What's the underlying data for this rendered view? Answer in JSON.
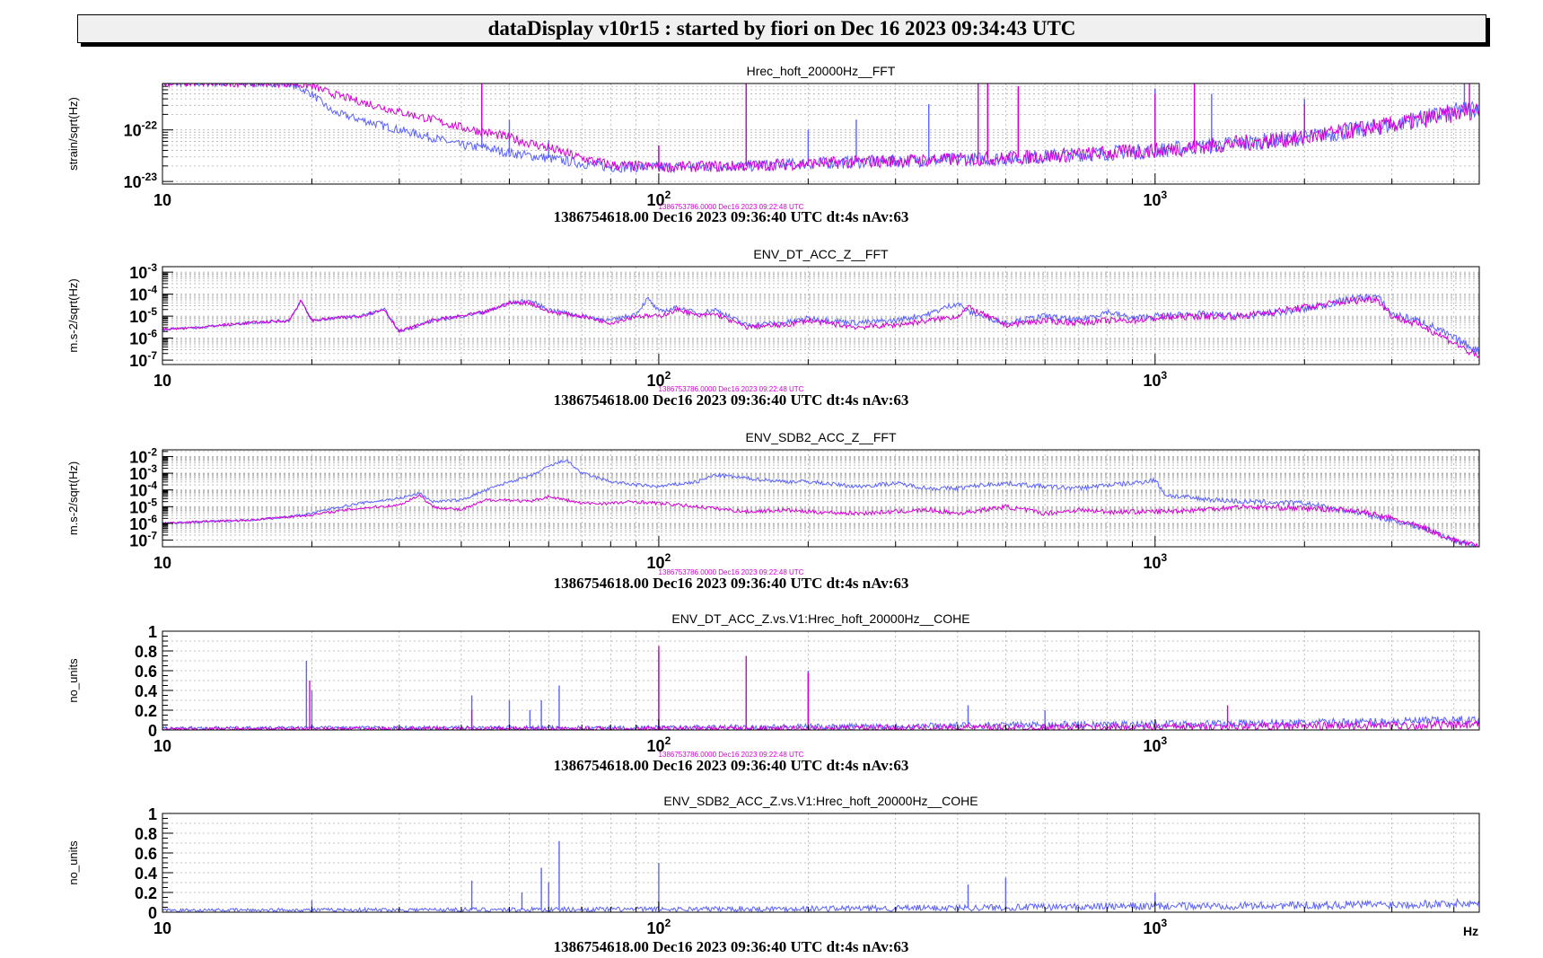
{
  "header": {
    "title": "dataDisplay v10r15 : started by fiori on Dec 16 2023 09:34:43 UTC"
  },
  "colors": {
    "current": "#5b62ff",
    "reference": "#d400d4",
    "grid": "#b0b0b0"
  },
  "x_axis_unit": "Hz",
  "chart_data": [
    {
      "type": "line",
      "title": "Hrec_hoft_20000Hz__FFT",
      "ylabel": "strain/sqrt(Hz)",
      "yscale": "log",
      "xscale": "log",
      "xlim": [
        10,
        4500
      ],
      "ylim_exp": [
        -23.05,
        -21.1
      ],
      "yticks": [
        {
          "exp": -22,
          "base": "10",
          "sup": "-22"
        },
        {
          "exp": -23,
          "base": "10",
          "sup": "-23"
        }
      ],
      "xticks": [
        {
          "v": 10,
          "base": "10",
          "sup": ""
        },
        {
          "v": 100,
          "base": "10",
          "sup": "2"
        },
        {
          "v": 1000,
          "base": "10",
          "sup": "3"
        }
      ],
      "stamp": "1386753786.0000 Dec16 2023 09:22:48 UTC",
      "footer": "1386754618.00 Dec16 2023 09:36:40 UTC dt:4s nAv:63",
      "series": [
        {
          "role": "current",
          "x": [
            10,
            15,
            18,
            20,
            22,
            25,
            30,
            35,
            40,
            45,
            50,
            55,
            60,
            70,
            80,
            100,
            150,
            200,
            300,
            500,
            1000,
            2000,
            3000,
            4500
          ],
          "y_exp": [
            -21.1,
            -21.1,
            -21.1,
            -21.3,
            -21.65,
            -21.8,
            -22.0,
            -22.15,
            -22.3,
            -22.35,
            -22.45,
            -22.5,
            -22.55,
            -22.65,
            -22.72,
            -22.72,
            -22.7,
            -22.65,
            -22.6,
            -22.55,
            -22.4,
            -22.15,
            -21.9,
            -21.55
          ],
          "peaks": [
            {
              "x": 44,
              "y_exp": -21.15
            },
            {
              "x": 50,
              "y_exp": -21.8
            },
            {
              "x": 60,
              "y_exp": -22.2
            },
            {
              "x": 100,
              "y_exp": -22.3
            },
            {
              "x": 150,
              "y_exp": -21.1
            },
            {
              "x": 200,
              "y_exp": -22.0
            },
            {
              "x": 250,
              "y_exp": -21.8
            },
            {
              "x": 350,
              "y_exp": -21.5
            },
            {
              "x": 440,
              "y_exp": -21.1
            },
            {
              "x": 460,
              "y_exp": -21.1
            },
            {
              "x": 530,
              "y_exp": -21.2
            },
            {
              "x": 1000,
              "y_exp": -21.2
            },
            {
              "x": 1300,
              "y_exp": -21.3
            },
            {
              "x": 2000,
              "y_exp": -21.4
            },
            {
              "x": 4200,
              "y_exp": -21.1
            }
          ]
        },
        {
          "role": "reference",
          "x": [
            10,
            18,
            20,
            22,
            25,
            30,
            35,
            40,
            45,
            50,
            60,
            70,
            80,
            100,
            150,
            200,
            300,
            500,
            1000,
            2000,
            3000,
            4500
          ],
          "y_exp": [
            -21.1,
            -21.1,
            -21.15,
            -21.3,
            -21.45,
            -21.65,
            -21.8,
            -21.95,
            -22.05,
            -22.15,
            -22.35,
            -22.55,
            -22.68,
            -22.72,
            -22.7,
            -22.65,
            -22.6,
            -22.55,
            -22.4,
            -22.15,
            -21.9,
            -21.6
          ],
          "peaks": [
            {
              "x": 44,
              "y_exp": -21.1
            },
            {
              "x": 100,
              "y_exp": -22.3
            },
            {
              "x": 150,
              "y_exp": -21.1
            },
            {
              "x": 440,
              "y_exp": -21.1
            },
            {
              "x": 460,
              "y_exp": -21.1
            },
            {
              "x": 530,
              "y_exp": -21.15
            },
            {
              "x": 1000,
              "y_exp": -21.3
            },
            {
              "x": 1200,
              "y_exp": -21.1
            },
            {
              "x": 2000,
              "y_exp": -21.5
            },
            {
              "x": 4300,
              "y_exp": -21.1
            }
          ]
        }
      ]
    },
    {
      "type": "line",
      "title": "ENV_DT_ACC_Z__FFT",
      "ylabel": "m.s-2/sqrt(Hz)",
      "yscale": "log",
      "xscale": "log",
      "xlim": [
        10,
        4500
      ],
      "ylim_exp": [
        -7.2,
        -2.75
      ],
      "yticks": [
        {
          "exp": -3,
          "base": "10",
          "sup": "-3"
        },
        {
          "exp": -4,
          "base": "10",
          "sup": "-4"
        },
        {
          "exp": -5,
          "base": "10",
          "sup": "-5"
        },
        {
          "exp": -6,
          "base": "10",
          "sup": "-6"
        },
        {
          "exp": -7,
          "base": "10",
          "sup": "-7"
        }
      ],
      "xticks": [
        {
          "v": 10,
          "base": "10",
          "sup": ""
        },
        {
          "v": 100,
          "base": "10",
          "sup": "2"
        },
        {
          "v": 1000,
          "base": "10",
          "sup": "3"
        }
      ],
      "stamp": "1386753786.0000 Dec16 2023 09:22:48 UTC",
      "footer": "1386754618.00 Dec16 2023 09:36:40 UTC dt:4s nAv:63",
      "series": [
        {
          "role": "current",
          "x": [
            10,
            12,
            15,
            18,
            19,
            20,
            22,
            25,
            28,
            30,
            35,
            40,
            45,
            50,
            55,
            60,
            70,
            80,
            90,
            95,
            100,
            110,
            120,
            130,
            150,
            180,
            200,
            250,
            300,
            350,
            400,
            420,
            500,
            600,
            700,
            800,
            900,
            1000,
            1200,
            1500,
            2000,
            2500,
            2800,
            3000,
            3500,
            4000,
            4500
          ],
          "y_exp": [
            -5.6,
            -5.5,
            -5.3,
            -5.2,
            -4.3,
            -5.2,
            -5.1,
            -5.0,
            -4.7,
            -5.7,
            -5.2,
            -5.0,
            -4.8,
            -4.4,
            -4.3,
            -4.7,
            -5.0,
            -5.2,
            -4.9,
            -4.2,
            -4.8,
            -4.6,
            -4.9,
            -4.7,
            -5.4,
            -5.3,
            -5.1,
            -5.3,
            -5.2,
            -4.9,
            -4.4,
            -4.8,
            -5.3,
            -5.0,
            -5.2,
            -4.8,
            -5.1,
            -5.0,
            -4.9,
            -5.0,
            -4.7,
            -4.2,
            -4.1,
            -4.9,
            -5.3,
            -6.0,
            -6.6
          ]
        },
        {
          "role": "reference",
          "x": [
            10,
            12,
            15,
            18,
            19,
            20,
            22,
            25,
            28,
            30,
            35,
            40,
            45,
            50,
            55,
            60,
            70,
            80,
            90,
            100,
            110,
            120,
            130,
            150,
            180,
            200,
            250,
            300,
            350,
            400,
            420,
            500,
            600,
            700,
            800,
            900,
            1000,
            1200,
            1500,
            2000,
            2500,
            2800,
            3000,
            3500,
            4000,
            4500
          ],
          "y_exp": [
            -5.6,
            -5.5,
            -5.3,
            -5.2,
            -4.3,
            -5.2,
            -5.1,
            -5.0,
            -4.7,
            -5.7,
            -5.2,
            -5.0,
            -4.8,
            -4.4,
            -4.4,
            -4.8,
            -5.0,
            -5.3,
            -5.0,
            -5.0,
            -4.7,
            -5.0,
            -4.9,
            -5.5,
            -5.4,
            -5.2,
            -5.5,
            -5.4,
            -5.2,
            -5.0,
            -4.6,
            -5.4,
            -5.2,
            -5.3,
            -5.2,
            -5.2,
            -5.1,
            -5.0,
            -5.0,
            -4.6,
            -4.3,
            -4.2,
            -5.0,
            -5.5,
            -6.2,
            -6.9
          ]
        }
      ]
    },
    {
      "type": "line",
      "title": "ENV_SDB2_ACC_Z__FFT",
      "ylabel": "m.s-2/sqrt(Hz)",
      "yscale": "log",
      "xscale": "log",
      "xlim": [
        10,
        4500
      ],
      "ylim_exp": [
        -7.4,
        -1.6
      ],
      "yticks": [
        {
          "exp": -2,
          "base": "10",
          "sup": "-2"
        },
        {
          "exp": -3,
          "base": "10",
          "sup": "-3"
        },
        {
          "exp": -4,
          "base": "10",
          "sup": "-4"
        },
        {
          "exp": -5,
          "base": "10",
          "sup": "-5"
        },
        {
          "exp": -6,
          "base": "10",
          "sup": "-6"
        },
        {
          "exp": -7,
          "base": "10",
          "sup": "-7"
        }
      ],
      "xticks": [
        {
          "v": 10,
          "base": "10",
          "sup": ""
        },
        {
          "v": 100,
          "base": "10",
          "sup": "2"
        },
        {
          "v": 1000,
          "base": "10",
          "sup": "3"
        }
      ],
      "stamp": "1386753786.0000 Dec16 2023 09:22:48 UTC",
      "footer": "1386754618.00 Dec16 2023 09:36:40 UTC dt:4s nAv:63",
      "series": [
        {
          "role": "current",
          "x": [
            10,
            12,
            15,
            18,
            20,
            22,
            25,
            30,
            33,
            35,
            40,
            45,
            50,
            55,
            60,
            65,
            70,
            80,
            90,
            100,
            120,
            130,
            150,
            180,
            200,
            250,
            300,
            350,
            400,
            450,
            500,
            600,
            700,
            800,
            900,
            1000,
            1050,
            1200,
            1500,
            2000,
            2500,
            3000,
            3500,
            4000,
            4500
          ],
          "y_exp": [
            -6.0,
            -5.9,
            -5.8,
            -5.6,
            -5.4,
            -5.1,
            -4.8,
            -4.5,
            -4.2,
            -4.7,
            -4.6,
            -4.0,
            -3.5,
            -3.2,
            -2.6,
            -2.2,
            -3.0,
            -3.5,
            -3.7,
            -3.8,
            -3.5,
            -3.1,
            -3.3,
            -3.5,
            -3.5,
            -3.8,
            -3.6,
            -3.9,
            -3.9,
            -3.7,
            -3.6,
            -3.8,
            -3.9,
            -3.7,
            -3.6,
            -3.4,
            -4.3,
            -4.5,
            -4.7,
            -4.8,
            -5.3,
            -5.8,
            -6.3,
            -7.0,
            -7.4
          ]
        },
        {
          "role": "reference",
          "x": [
            10,
            12,
            15,
            18,
            20,
            22,
            25,
            30,
            33,
            35,
            40,
            45,
            50,
            55,
            60,
            65,
            70,
            80,
            90,
            100,
            120,
            150,
            180,
            200,
            250,
            300,
            350,
            400,
            450,
            500,
            600,
            700,
            800,
            900,
            1000,
            1200,
            1500,
            2000,
            2500,
            3000,
            3500,
            4000,
            4500
          ],
          "y_exp": [
            -6.0,
            -5.9,
            -5.8,
            -5.6,
            -5.5,
            -5.3,
            -5.1,
            -4.9,
            -4.3,
            -5.0,
            -5.2,
            -4.6,
            -4.6,
            -4.7,
            -4.4,
            -4.6,
            -4.8,
            -4.8,
            -4.7,
            -4.8,
            -5.0,
            -5.3,
            -5.2,
            -5.3,
            -5.4,
            -5.3,
            -5.2,
            -5.4,
            -5.2,
            -5.0,
            -5.4,
            -5.2,
            -5.3,
            -5.3,
            -5.3,
            -5.2,
            -5.0,
            -5.1,
            -5.2,
            -5.7,
            -6.3,
            -7.0,
            -7.4
          ]
        }
      ]
    },
    {
      "type": "line",
      "title": "ENV_DT_ACC_Z.vs.V1:Hrec_hoft_20000Hz__COHE",
      "ylabel": "no_units",
      "yscale": "linear",
      "xscale": "log",
      "xlim": [
        10,
        4500
      ],
      "ylim": [
        0,
        1
      ],
      "yticks": [
        {
          "v": 1,
          "label": "1"
        },
        {
          "v": 0.8,
          "label": "0.8"
        },
        {
          "v": 0.6,
          "label": "0.6"
        },
        {
          "v": 0.4,
          "label": "0.4"
        },
        {
          "v": 0.2,
          "label": "0.2"
        },
        {
          "v": 0,
          "label": "0"
        }
      ],
      "xticks": [
        {
          "v": 10,
          "base": "10",
          "sup": ""
        },
        {
          "v": 100,
          "base": "10",
          "sup": "2"
        },
        {
          "v": 1000,
          "base": "10",
          "sup": "3"
        }
      ],
      "stamp": "1386753786.0000 Dec16 2023 09:22:48 UTC",
      "footer": "1386754618.00 Dec16 2023 09:36:40 UTC dt:4s nAv:63",
      "series": [
        {
          "role": "current",
          "x": [
            10,
            100,
            300,
            1000,
            2000,
            4500
          ],
          "y": [
            0.02,
            0.02,
            0.04,
            0.06,
            0.07,
            0.1
          ],
          "peaks": [
            {
              "x": 19.5,
              "y": 0.7
            },
            {
              "x": 20,
              "y": 0.4
            },
            {
              "x": 42,
              "y": 0.35
            },
            {
              "x": 50,
              "y": 0.3
            },
            {
              "x": 55,
              "y": 0.2
            },
            {
              "x": 58,
              "y": 0.3
            },
            {
              "x": 63,
              "y": 0.45
            },
            {
              "x": 100,
              "y": 0.8
            },
            {
              "x": 150,
              "y": 0.4
            },
            {
              "x": 200,
              "y": 0.6
            },
            {
              "x": 420,
              "y": 0.25
            },
            {
              "x": 600,
              "y": 0.2
            }
          ]
        },
        {
          "role": "reference",
          "x": [
            10,
            100,
            300,
            1000,
            2000,
            4500
          ],
          "y": [
            0.01,
            0.01,
            0.02,
            0.03,
            0.04,
            0.05
          ],
          "peaks": [
            {
              "x": 19.8,
              "y": 0.5
            },
            {
              "x": 42,
              "y": 0.2
            },
            {
              "x": 100,
              "y": 0.85
            },
            {
              "x": 150,
              "y": 0.75
            },
            {
              "x": 200,
              "y": 0.58
            },
            {
              "x": 1400,
              "y": 0.25
            }
          ]
        }
      ]
    },
    {
      "type": "line",
      "title": "ENV_SDB2_ACC_Z.vs.V1:Hrec_hoft_20000Hz__COHE",
      "ylabel": "no_units",
      "yscale": "linear",
      "xscale": "log",
      "xlim": [
        10,
        4500
      ],
      "ylim": [
        0,
        1
      ],
      "yticks": [
        {
          "v": 1,
          "label": "1"
        },
        {
          "v": 0.8,
          "label": "0.8"
        },
        {
          "v": 0.6,
          "label": "0.6"
        },
        {
          "v": 0.4,
          "label": "0.4"
        },
        {
          "v": 0.2,
          "label": "0.2"
        },
        {
          "v": 0,
          "label": "0"
        }
      ],
      "xticks": [
        {
          "v": 10,
          "base": "10",
          "sup": ""
        },
        {
          "v": 100,
          "base": "10",
          "sup": "2"
        },
        {
          "v": 1000,
          "base": "10",
          "sup": "3"
        }
      ],
      "xunit": "Hz",
      "footer": "1386754618.00 Dec16 2023 09:36:40 UTC dt:4s nAv:63",
      "series": [
        {
          "role": "current",
          "x": [
            10,
            100,
            300,
            1000,
            2000,
            4500
          ],
          "y": [
            0.02,
            0.03,
            0.04,
            0.06,
            0.07,
            0.09
          ],
          "peaks": [
            {
              "x": 20,
              "y": 0.12
            },
            {
              "x": 42,
              "y": 0.32
            },
            {
              "x": 53,
              "y": 0.2
            },
            {
              "x": 58,
              "y": 0.45
            },
            {
              "x": 60,
              "y": 0.3
            },
            {
              "x": 63,
              "y": 0.72
            },
            {
              "x": 100,
              "y": 0.5
            },
            {
              "x": 420,
              "y": 0.28
            },
            {
              "x": 500,
              "y": 0.35
            },
            {
              "x": 1000,
              "y": 0.2
            }
          ]
        }
      ]
    }
  ]
}
